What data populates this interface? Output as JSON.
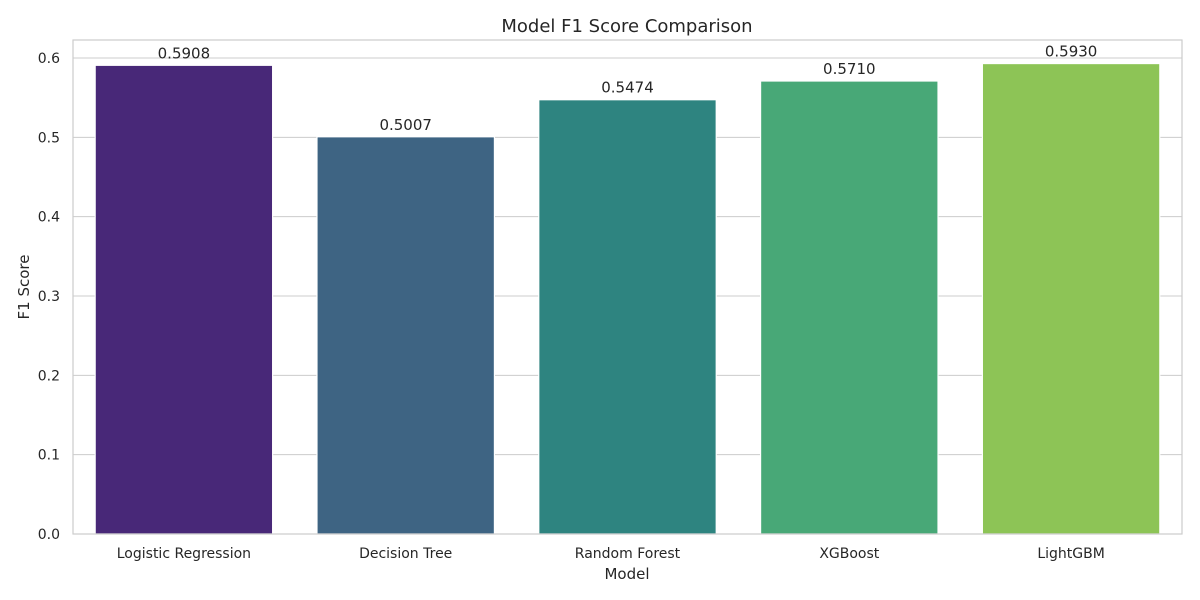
{
  "chart_data": {
    "type": "bar",
    "title": "Model F1 Score Comparison",
    "xlabel": "Model",
    "ylabel": "F1 Score",
    "categories": [
      "Logistic Regression",
      "Decision Tree",
      "Random Forest",
      "XGBoost",
      "LightGBM"
    ],
    "values": [
      0.5908,
      0.5007,
      0.5474,
      0.571,
      0.593
    ],
    "value_labels": [
      "0.5908",
      "0.5007",
      "0.5474",
      "0.5710",
      "0.5930"
    ],
    "colors": [
      "#482878",
      "#3e6483",
      "#2e8480",
      "#48a877",
      "#8dc456"
    ],
    "ylim": [
      0,
      0.6227
    ],
    "yticks": [
      0.0,
      0.1,
      0.2,
      0.3,
      0.4,
      0.5,
      0.6
    ],
    "ytick_labels": [
      "0.0",
      "0.1",
      "0.2",
      "0.3",
      "0.4",
      "0.5",
      "0.6"
    ],
    "grid": "horizontal",
    "legend": "none"
  }
}
